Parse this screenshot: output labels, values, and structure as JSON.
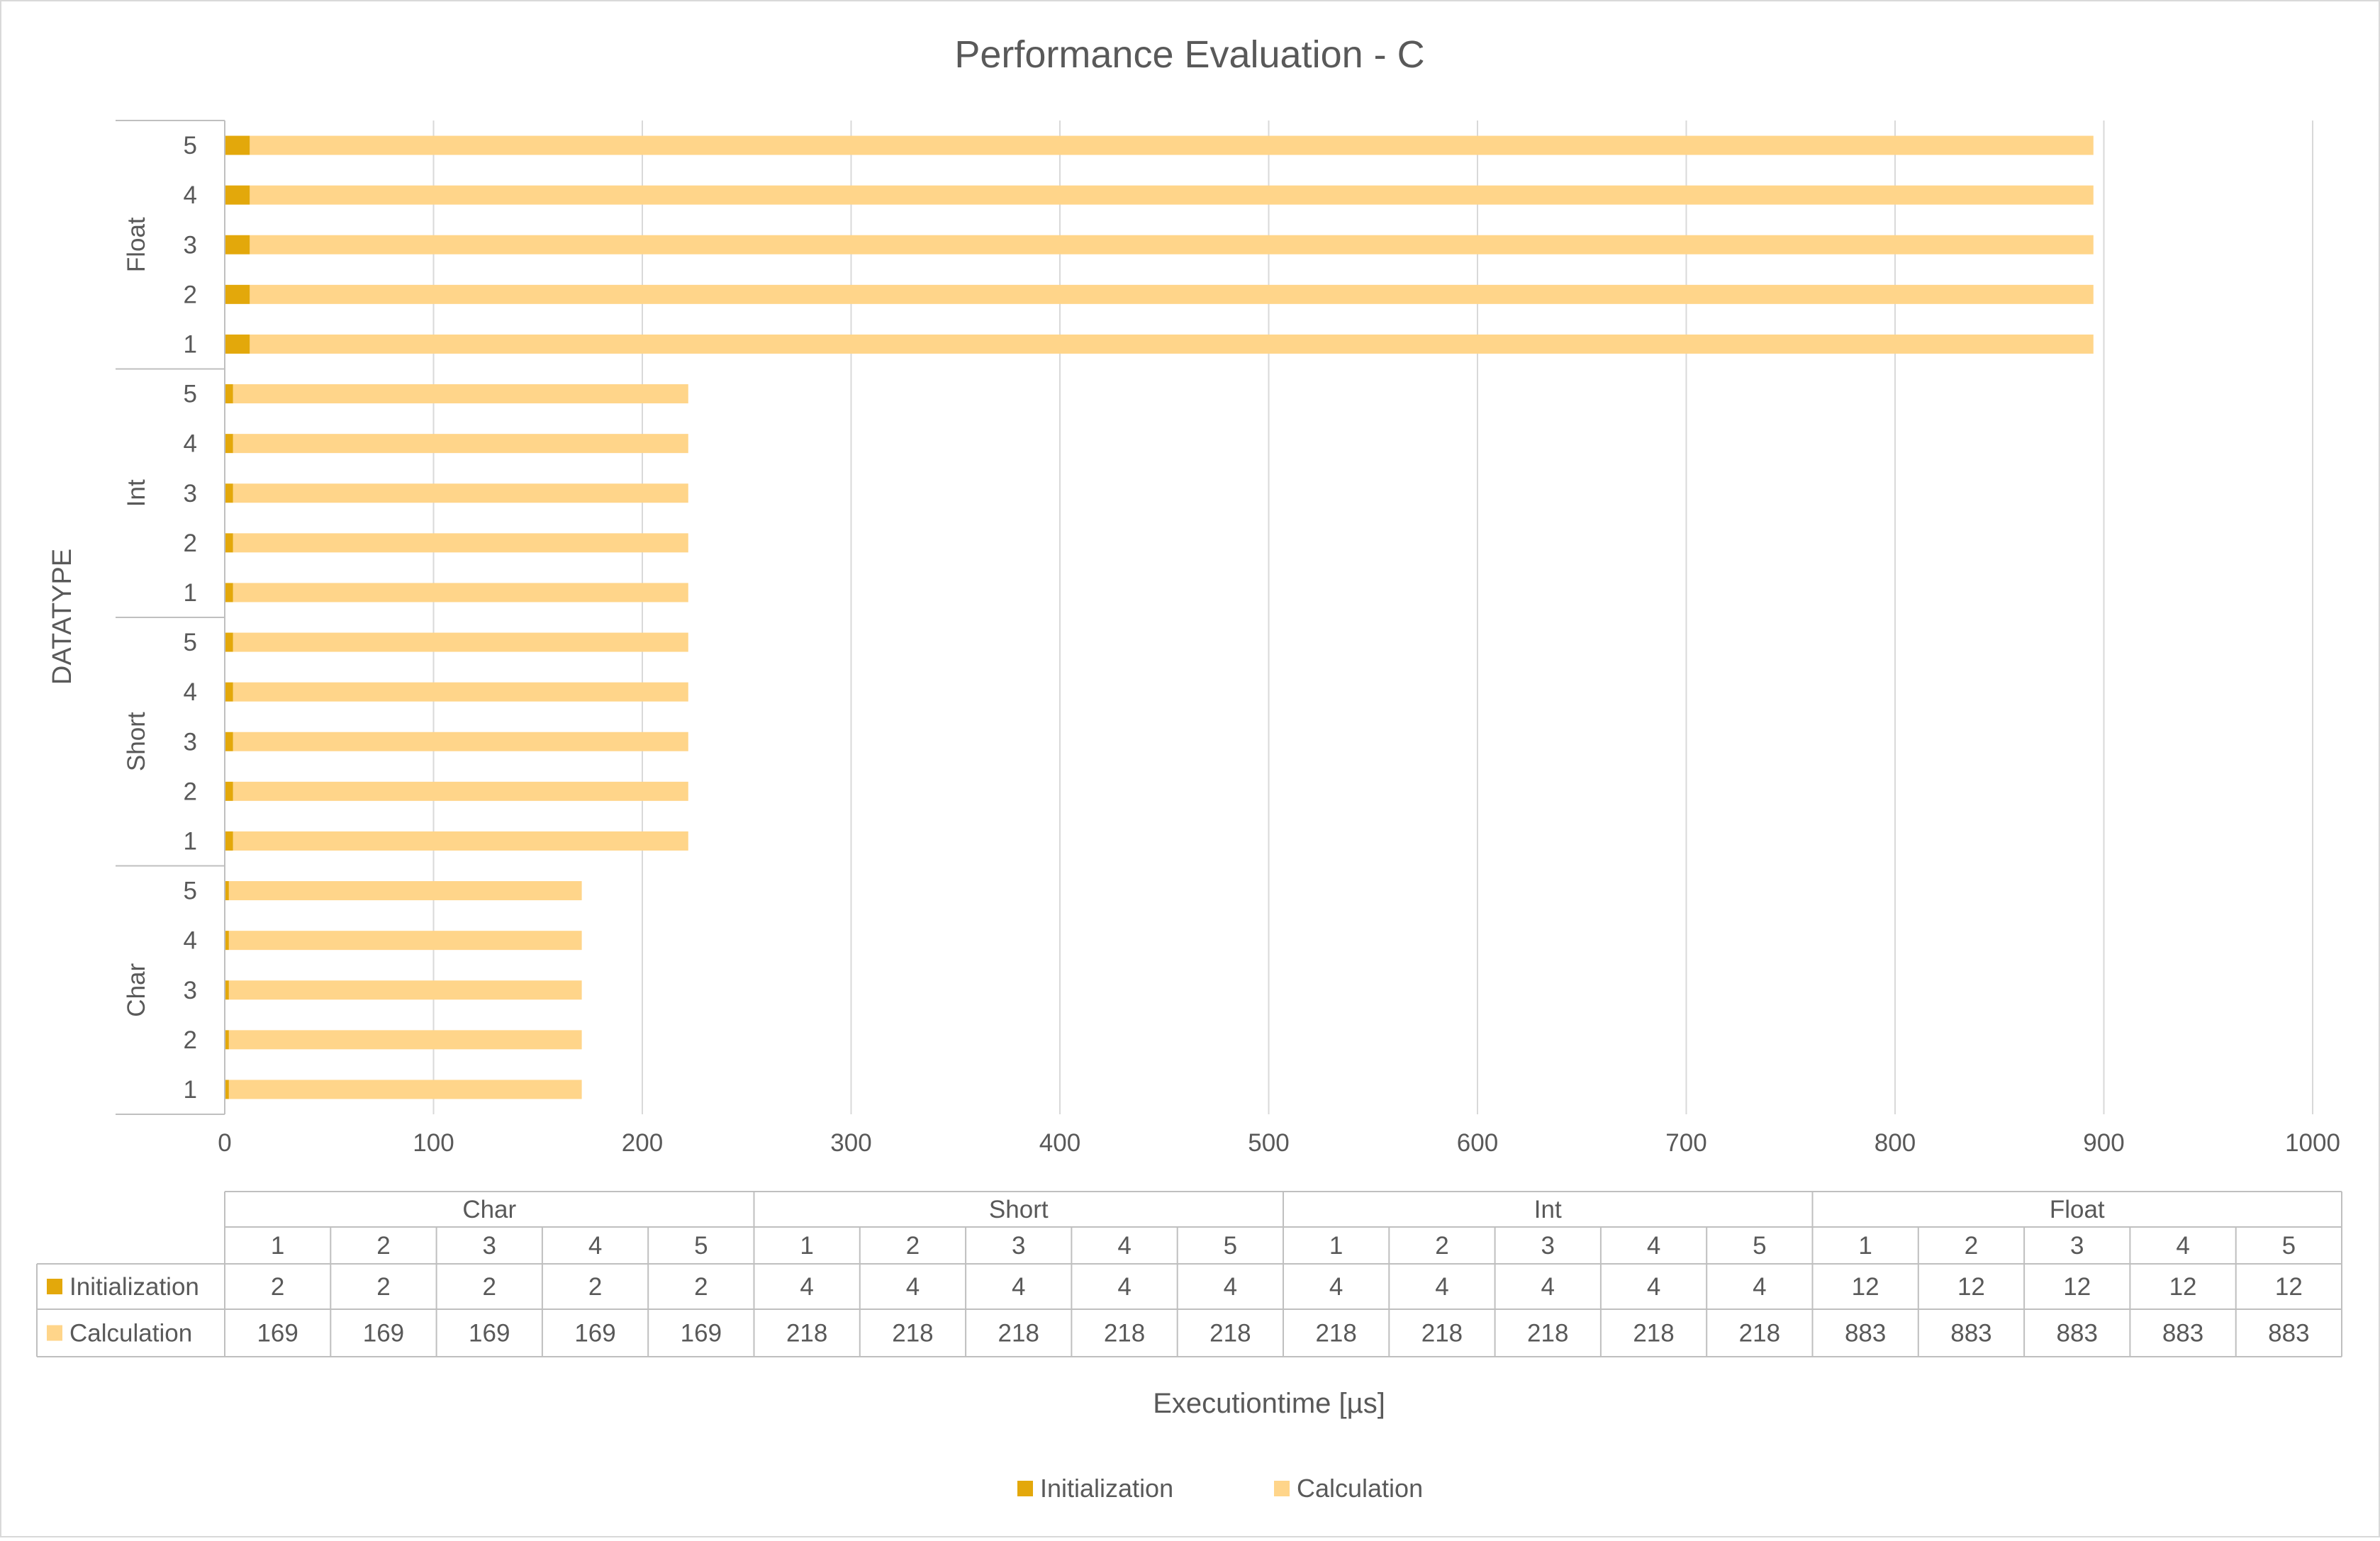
{
  "chart_data": {
    "type": "bar",
    "orientation": "horizontal",
    "stacked": true,
    "title": "Performance Evaluation - C",
    "xlabel": "Executiontime [µs]",
    "ylabel": "DATATYPE",
    "xlim": [
      0,
      1000
    ],
    "x_ticks": [
      0,
      100,
      200,
      300,
      400,
      500,
      600,
      700,
      800,
      900,
      1000
    ],
    "grid": true,
    "legend_position": "bottom",
    "groups": [
      "Char",
      "Short",
      "Int",
      "Float"
    ],
    "runs": [
      "1",
      "2",
      "3",
      "4",
      "5"
    ],
    "series": [
      {
        "name": "Initialization",
        "color": "#E3A80B",
        "values": [
          2,
          2,
          2,
          2,
          2,
          4,
          4,
          4,
          4,
          4,
          4,
          4,
          4,
          4,
          4,
          12,
          12,
          12,
          12,
          12
        ]
      },
      {
        "name": "Calculation",
        "color": "#FFD58A",
        "values": [
          169,
          169,
          169,
          169,
          169,
          218,
          218,
          218,
          218,
          218,
          218,
          218,
          218,
          218,
          218,
          883,
          883,
          883,
          883,
          883
        ]
      }
    ],
    "data_table": true
  },
  "colors": {
    "grid": "#D9D9D9",
    "text": "#595959",
    "border": "#BFBFBF"
  }
}
